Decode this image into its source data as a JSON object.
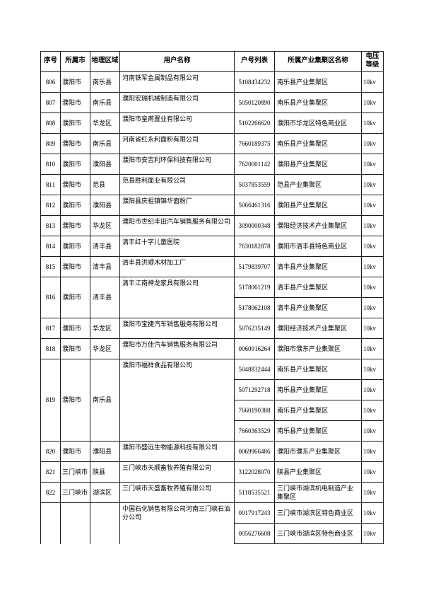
{
  "page": {
    "background": "#ffffff",
    "text_color": "#000000",
    "border_color": "#1a1a1a"
  },
  "table": {
    "columns": [
      {
        "key": "seq",
        "label": "序号"
      },
      {
        "key": "city",
        "label": "所属市"
      },
      {
        "key": "region",
        "label": "地理区域"
      },
      {
        "key": "name",
        "label": "用户名称"
      },
      {
        "key": "account",
        "label": "户号列表"
      },
      {
        "key": "cluster",
        "label": "所属产业集聚区名称"
      },
      {
        "key": "voltage",
        "label": "电压等级"
      }
    ],
    "groups": [
      {
        "seq": "806",
        "city": "濮阳市",
        "region": "南乐县",
        "name": "河南铁军金属制品有限公司",
        "entries": [
          {
            "account": "5108434232",
            "cluster": "南乐县产业集聚区",
            "voltage": "10kv"
          }
        ]
      },
      {
        "seq": "807",
        "city": "濮阳市",
        "region": "南乐县",
        "name": "濮阳宏瑞机械制造有限公司",
        "entries": [
          {
            "account": "5050120890",
            "cluster": "南乐县产业集聚区",
            "voltage": "10kv"
          }
        ]
      },
      {
        "seq": "808",
        "city": "濮阳市",
        "region": "华龙区",
        "name": "濮阳市皇甫置业有限公司",
        "entries": [
          {
            "account": "5102266620",
            "cluster": "濮阳市华龙区特色商业区",
            "voltage": "10kv"
          }
        ]
      },
      {
        "seq": "809",
        "city": "濮阳市",
        "region": "南乐县",
        "name": "河南省红永利面粉有限公司",
        "entries": [
          {
            "account": "7660189375",
            "cluster": "南乐县产业集聚区",
            "voltage": "10kv"
          }
        ]
      },
      {
        "seq": "810",
        "city": "濮阳市",
        "region": "濮阳县",
        "name": "濮阳市安吉利环保科技有限公司",
        "entries": [
          {
            "account": "7620001142",
            "cluster": "濮阳县产业集聚区",
            "voltage": "10kv"
          }
        ]
      },
      {
        "seq": "811",
        "city": "濮阳市",
        "region": "范县",
        "name": "范县胜利面业有限公司",
        "entries": [
          {
            "account": "5037853559",
            "cluster": "范县产业集聚区",
            "voltage": "10kv"
          }
        ]
      },
      {
        "seq": "812",
        "city": "濮阳市",
        "region": "濮阳县",
        "name": "濮阳县庆祖镇锦华面粉厂",
        "entries": [
          {
            "account": "5066461316",
            "cluster": "濮阳县产业集聚区",
            "voltage": "10kv"
          }
        ]
      },
      {
        "seq": "813",
        "city": "濮阳市",
        "region": "华龙区",
        "name": "濮阳市世纪丰田汽车销售服务有限公司",
        "entries": [
          {
            "account": "3090000348",
            "cluster": "濮阳经济技术产业集聚区",
            "voltage": "10kv"
          }
        ]
      },
      {
        "seq": "814",
        "city": "濮阳市",
        "region": "清丰县",
        "name": "清丰红十字儿童医院",
        "entries": [
          {
            "account": "7630182878",
            "cluster": "濮阳市清丰县特色商业区",
            "voltage": "10kv"
          }
        ]
      },
      {
        "seq": "815",
        "city": "濮阳市",
        "region": "清丰县",
        "name": "清丰县洪顺木材加工厂",
        "entries": [
          {
            "account": "5179839707",
            "cluster": "清丰县产业集聚区",
            "voltage": "10kv"
          }
        ]
      },
      {
        "seq": "816",
        "city": "濮阳市",
        "region": "清丰县",
        "name": "清丰江南神龙家具有限公司",
        "entries": [
          {
            "account": "5178061219",
            "cluster": "清丰县产业集聚区",
            "voltage": "10kv"
          },
          {
            "account": "5178062108",
            "cluster": "清丰县产业集聚区",
            "voltage": "10kv"
          }
        ]
      },
      {
        "seq": "817",
        "city": "濮阳市",
        "region": "华龙区",
        "name": "濮阳市宝捷汽车销售服务有限公司",
        "entries": [
          {
            "account": "5076235149",
            "cluster": "濮阳经济技术产业集聚区",
            "voltage": "10kv"
          }
        ]
      },
      {
        "seq": "818",
        "city": "濮阳市",
        "region": "华龙区",
        "name": "濮阳市万佳汽车销售服务有限公司",
        "entries": [
          {
            "account": "0060916264",
            "cluster": "濮阳市濮东产业集聚区",
            "voltage": "10kv"
          }
        ]
      },
      {
        "seq": "819",
        "city": "濮阳市",
        "region": "南乐县",
        "name": "濮阳市福祥食品有限公司",
        "entries": [
          {
            "account": "5048832444",
            "cluster": "南乐县产业集聚区",
            "voltage": "10kv"
          },
          {
            "account": "5071292718",
            "cluster": "南乐县产业集聚区",
            "voltage": "10kv"
          },
          {
            "account": "7660190388",
            "cluster": "南乐县产业集聚区",
            "voltage": "10kv"
          },
          {
            "account": "7660363529",
            "cluster": "南乐县产业集聚区",
            "voltage": "10kv"
          }
        ]
      },
      {
        "seq": "820",
        "city": "濮阳市",
        "region": "濮阳县",
        "name": "濮阳市盛远生物能源科技有限公司",
        "entries": [
          {
            "account": "0069966486",
            "cluster": "濮阳市濮东产业集聚区",
            "voltage": "10kv"
          }
        ]
      },
      {
        "seq": "821",
        "city": "三门峡市",
        "region": "陕县",
        "name": "三门峡市天顺畜牧养殖有限公司",
        "entries": [
          {
            "account": "3122028070",
            "cluster": "陕县产业集聚区",
            "voltage": "10kv"
          }
        ]
      },
      {
        "seq": "822",
        "city": "三门峡市",
        "region": "湖滨区",
        "name": "三门峡市天盛畜牧养殖有限公司",
        "entries": [
          {
            "account": "5118535521",
            "cluster": "三门峡市湖滨机电制造产业集聚区",
            "voltage": "10kv"
          }
        ]
      },
      {
        "seq": "",
        "city": "",
        "region": "",
        "name": "中国石化销售有限公司河南三门峡石油分公司",
        "cut": true,
        "entries": [
          {
            "account": "0017917243",
            "cluster": "三门峡市湖滨区特色商业区",
            "voltage": "10kv"
          },
          {
            "account": "0056276608",
            "cluster": "三门峡市湖滨区特色商业区",
            "voltage": "10kv"
          }
        ]
      }
    ]
  }
}
